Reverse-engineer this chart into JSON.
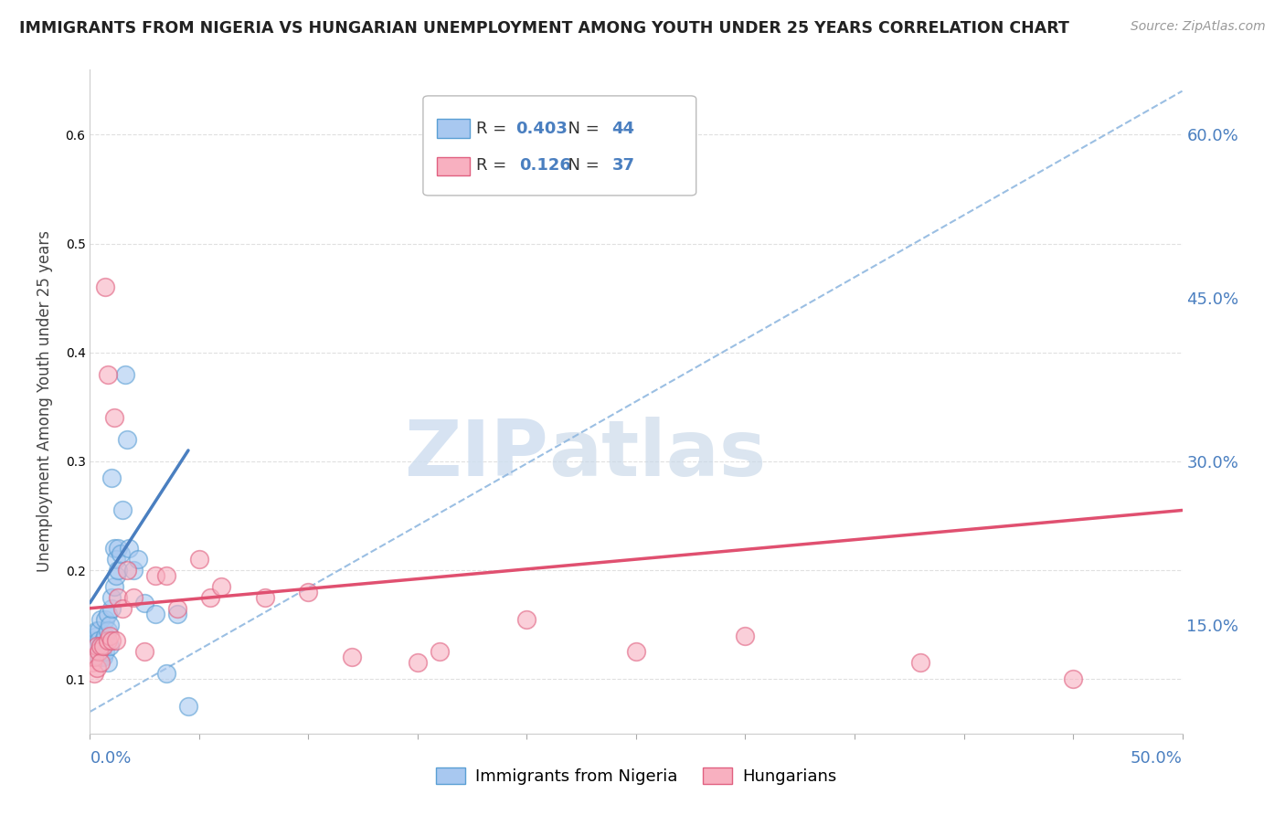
{
  "title": "IMMIGRANTS FROM NIGERIA VS HUNGARIAN UNEMPLOYMENT AMONG YOUTH UNDER 25 YEARS CORRELATION CHART",
  "source": "Source: ZipAtlas.com",
  "ylabel": "Unemployment Among Youth under 25 years",
  "legend1_r": "0.403",
  "legend1_n": "44",
  "legend2_r": "0.126",
  "legend2_n": "37",
  "series1_label": "Immigrants from Nigeria",
  "series2_label": "Hungarians",
  "blue_face": "#a8c8f0",
  "blue_edge": "#5a9fd4",
  "pink_face": "#f8b0c0",
  "pink_edge": "#e06080",
  "blue_line_color": "#4a7fc0",
  "pink_line_color": "#e05070",
  "dashed_line_color": "#90b8e0",
  "right_yticks": [
    0.15,
    0.3,
    0.45,
    0.6
  ],
  "right_yticklabels": [
    "15.0%",
    "30.0%",
    "45.0%",
    "60.0%"
  ],
  "blue_scatter": [
    [
      0.001,
      0.125
    ],
    [
      0.001,
      0.13
    ],
    [
      0.002,
      0.135
    ],
    [
      0.002,
      0.125
    ],
    [
      0.003,
      0.14
    ],
    [
      0.003,
      0.13
    ],
    [
      0.003,
      0.145
    ],
    [
      0.004,
      0.12
    ],
    [
      0.004,
      0.145
    ],
    [
      0.004,
      0.135
    ],
    [
      0.005,
      0.13
    ],
    [
      0.005,
      0.155
    ],
    [
      0.005,
      0.12
    ],
    [
      0.006,
      0.12
    ],
    [
      0.006,
      0.135
    ],
    [
      0.007,
      0.14
    ],
    [
      0.007,
      0.125
    ],
    [
      0.007,
      0.155
    ],
    [
      0.008,
      0.16
    ],
    [
      0.008,
      0.145
    ],
    [
      0.008,
      0.115
    ],
    [
      0.009,
      0.15
    ],
    [
      0.009,
      0.13
    ],
    [
      0.01,
      0.165
    ],
    [
      0.01,
      0.175
    ],
    [
      0.01,
      0.285
    ],
    [
      0.011,
      0.22
    ],
    [
      0.011,
      0.185
    ],
    [
      0.012,
      0.195
    ],
    [
      0.012,
      0.21
    ],
    [
      0.013,
      0.2
    ],
    [
      0.013,
      0.22
    ],
    [
      0.014,
      0.215
    ],
    [
      0.015,
      0.255
    ],
    [
      0.016,
      0.38
    ],
    [
      0.017,
      0.32
    ],
    [
      0.018,
      0.22
    ],
    [
      0.02,
      0.2
    ],
    [
      0.022,
      0.21
    ],
    [
      0.025,
      0.17
    ],
    [
      0.03,
      0.16
    ],
    [
      0.035,
      0.105
    ],
    [
      0.04,
      0.16
    ],
    [
      0.045,
      0.075
    ]
  ],
  "pink_scatter": [
    [
      0.001,
      0.115
    ],
    [
      0.002,
      0.105
    ],
    [
      0.002,
      0.12
    ],
    [
      0.003,
      0.11
    ],
    [
      0.003,
      0.13
    ],
    [
      0.004,
      0.125
    ],
    [
      0.005,
      0.13
    ],
    [
      0.005,
      0.115
    ],
    [
      0.006,
      0.13
    ],
    [
      0.007,
      0.46
    ],
    [
      0.008,
      0.135
    ],
    [
      0.008,
      0.38
    ],
    [
      0.009,
      0.14
    ],
    [
      0.01,
      0.135
    ],
    [
      0.011,
      0.34
    ],
    [
      0.012,
      0.135
    ],
    [
      0.013,
      0.175
    ],
    [
      0.015,
      0.165
    ],
    [
      0.017,
      0.2
    ],
    [
      0.02,
      0.175
    ],
    [
      0.025,
      0.125
    ],
    [
      0.03,
      0.195
    ],
    [
      0.035,
      0.195
    ],
    [
      0.04,
      0.165
    ],
    [
      0.05,
      0.21
    ],
    [
      0.055,
      0.175
    ],
    [
      0.06,
      0.185
    ],
    [
      0.08,
      0.175
    ],
    [
      0.1,
      0.18
    ],
    [
      0.12,
      0.12
    ],
    [
      0.15,
      0.115
    ],
    [
      0.16,
      0.125
    ],
    [
      0.2,
      0.155
    ],
    [
      0.25,
      0.125
    ],
    [
      0.3,
      0.14
    ],
    [
      0.38,
      0.115
    ],
    [
      0.45,
      0.1
    ]
  ],
  "xlim": [
    0.0,
    0.5
  ],
  "ylim": [
    0.05,
    0.66
  ],
  "background_color": "#ffffff",
  "grid_color": "#e0e0e0"
}
